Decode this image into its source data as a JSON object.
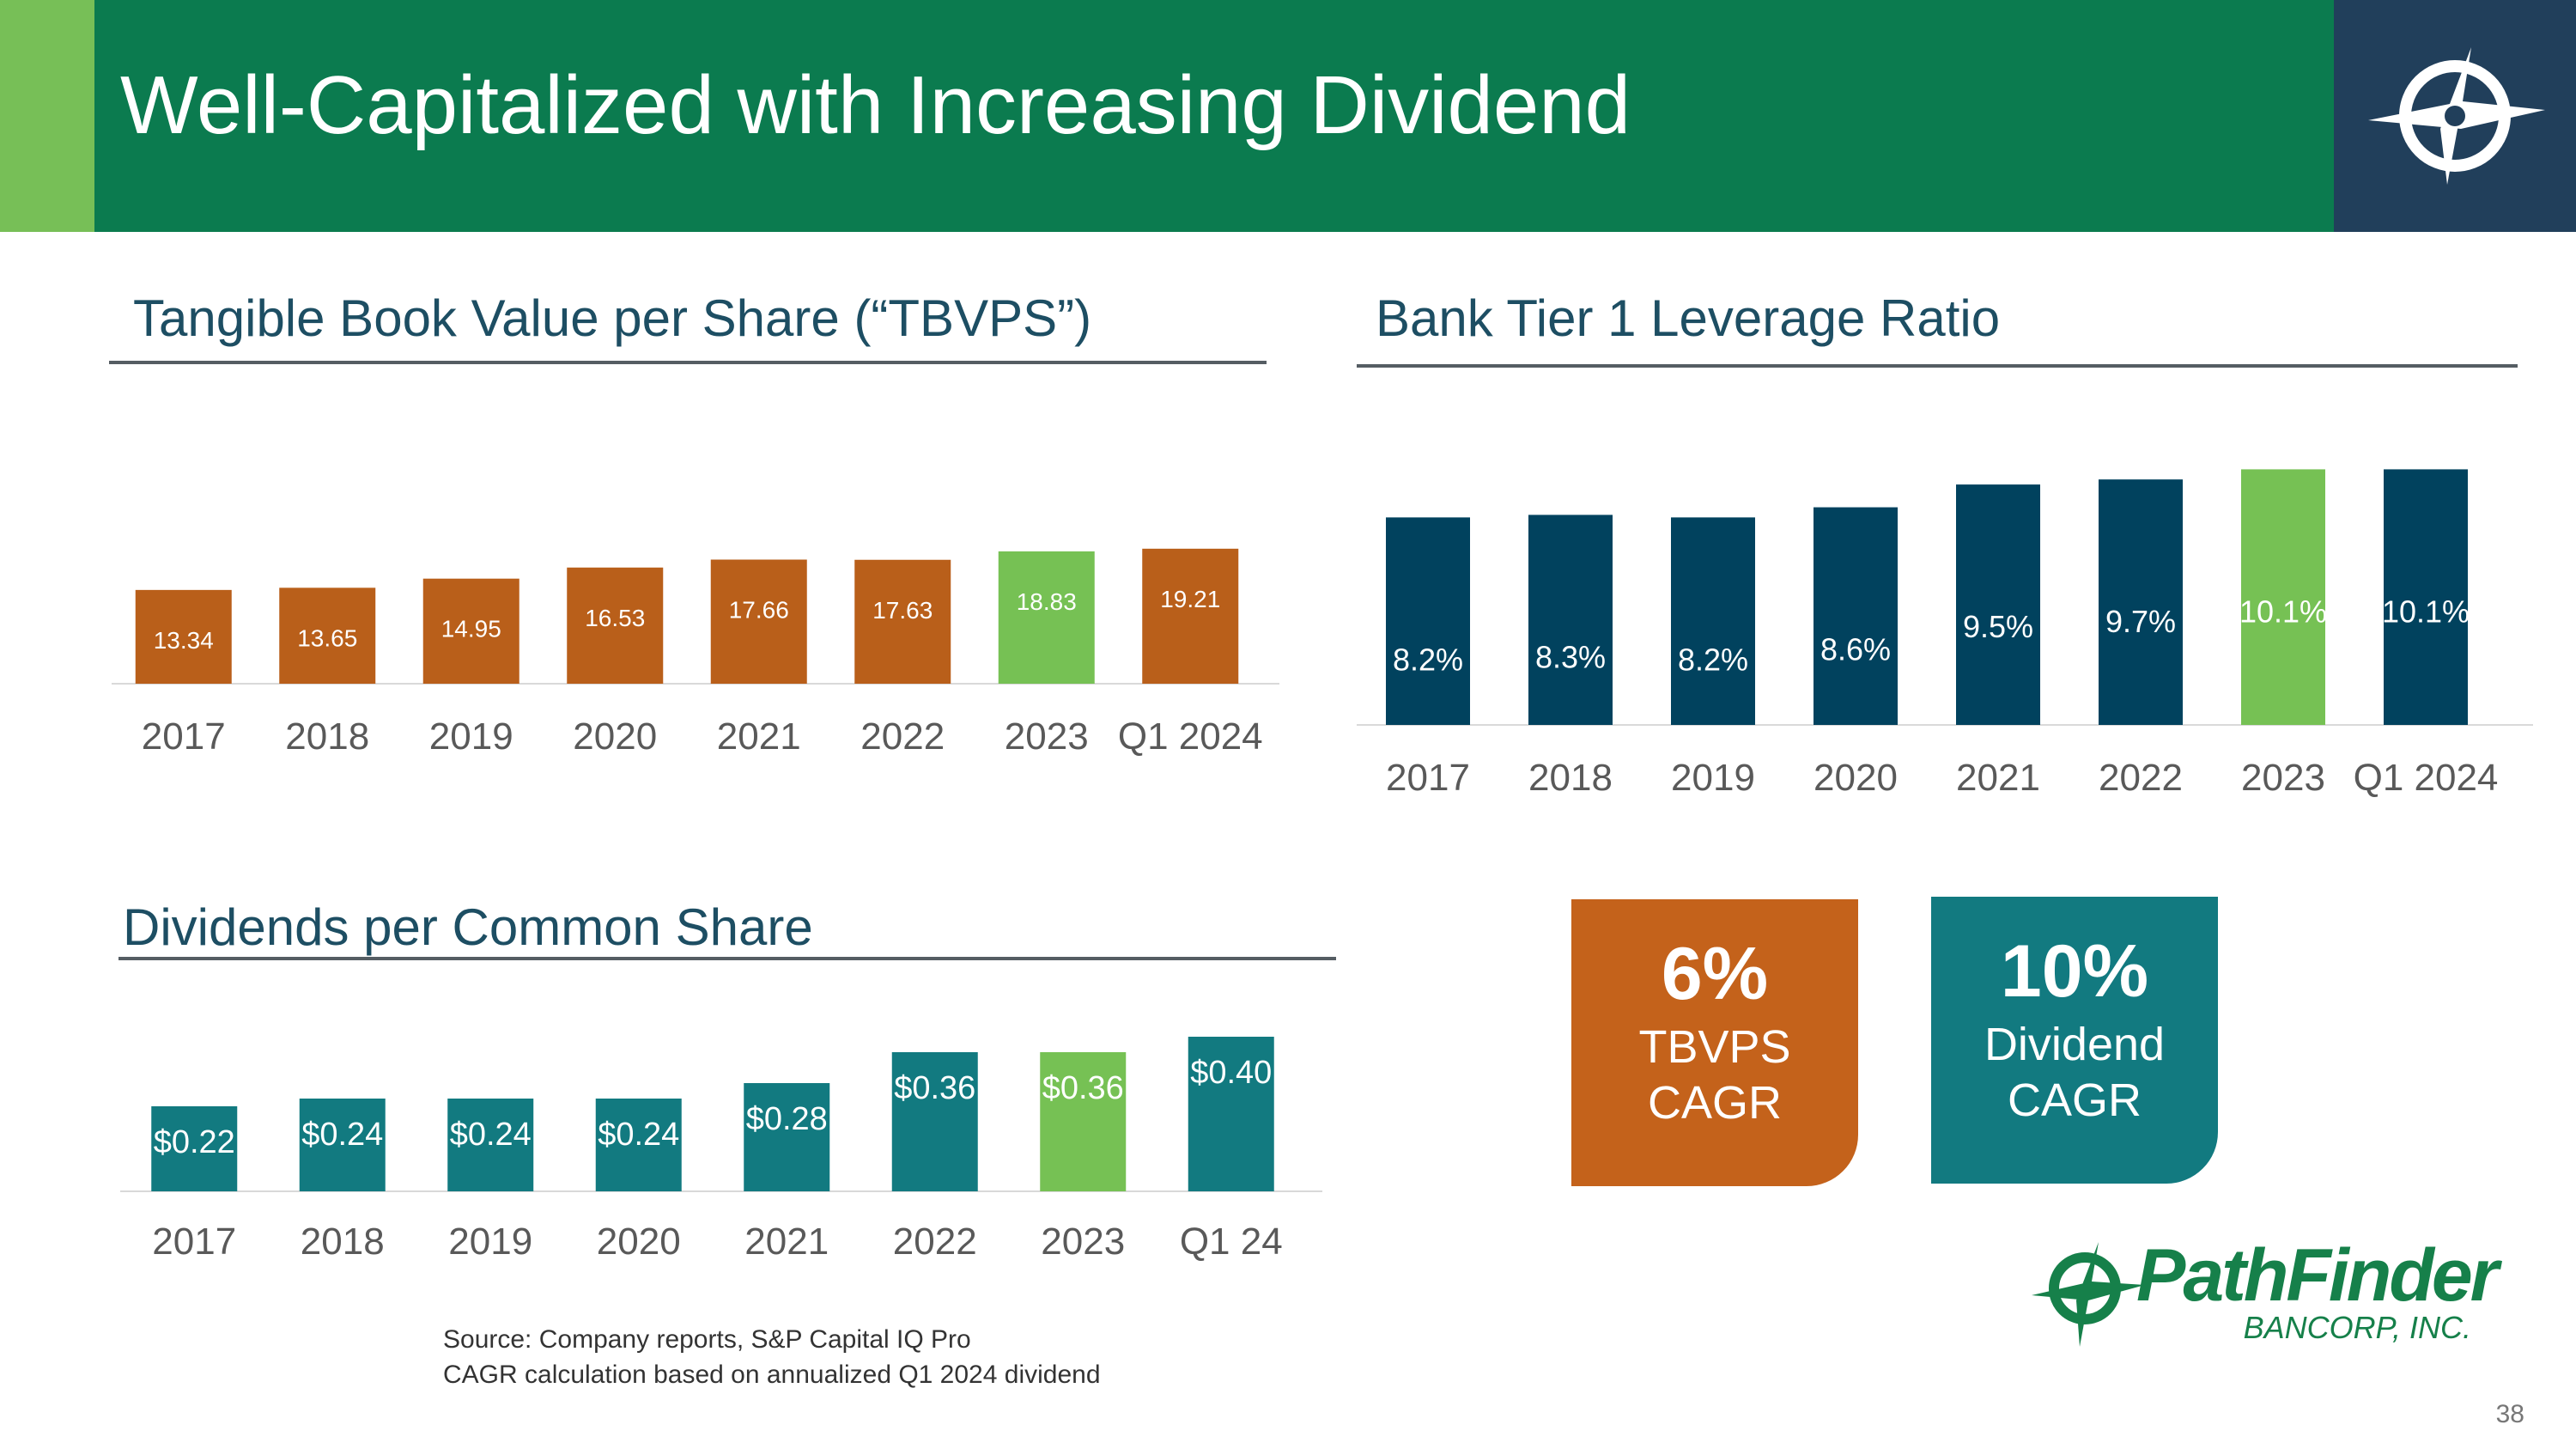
{
  "slide": {
    "title": "Well-Capitalized with Increasing Dividend",
    "page_number": "38"
  },
  "colors": {
    "banner_green": "#0b7b4f",
    "accent_green": "#77bf57",
    "logo_navy": "#213f5b",
    "tbvps_orange": "#b95f1a",
    "leverage_navy": "#01425e",
    "dividend_teal": "#127a80",
    "highlight_green": "#76c154"
  },
  "sections": {
    "tbvps_title": "Tangible Book Value per Share (“TBVPS”)",
    "leverage_title": "Bank Tier 1 Leverage Ratio",
    "dividends_title": "Dividends per Common Share"
  },
  "cagr": {
    "tbvps": {
      "value": "6%",
      "line1": "TBVPS",
      "line2": "CAGR"
    },
    "dividend": {
      "value": "10%",
      "line1": "Dividend",
      "line2": "CAGR"
    }
  },
  "source": {
    "line1": "Source: Company reports, S&P Capital IQ Pro",
    "line2": "CAGR calculation based on annualized Q1 2024 dividend"
  },
  "brand": {
    "name": "PathFinder",
    "sub": "BANCORP, INC."
  },
  "chart_data": [
    {
      "id": "tbvps",
      "type": "bar",
      "title": "Tangible Book Value per Share (“TBVPS”)",
      "categories": [
        "2017",
        "2018",
        "2019",
        "2020",
        "2021",
        "2022",
        "2023",
        "Q1 2024"
      ],
      "values": [
        13.34,
        13.65,
        14.95,
        16.53,
        17.66,
        17.63,
        18.83,
        19.21
      ],
      "labels": [
        "13.34",
        "13.65",
        "14.95",
        "16.53",
        "17.66",
        "17.63",
        "18.83",
        "19.21"
      ],
      "highlight_index": 6,
      "ylim": [
        0,
        22
      ]
    },
    {
      "id": "leverage",
      "type": "bar",
      "title": "Bank Tier 1 Leverage Ratio",
      "categories": [
        "2017",
        "2018",
        "2019",
        "2020",
        "2021",
        "2022",
        "2023",
        "Q1 2024"
      ],
      "values": [
        8.2,
        8.3,
        8.2,
        8.6,
        9.5,
        9.7,
        10.1,
        10.1
      ],
      "labels": [
        "8.2%",
        "8.3%",
        "8.2%",
        "8.6%",
        "9.5%",
        "9.7%",
        "10.1%",
        "10.1%"
      ],
      "highlight_index": 6,
      "ylim": [
        0,
        11.2
      ]
    },
    {
      "id": "dividends",
      "type": "bar",
      "title": "Dividends per Common Share",
      "categories": [
        "2017",
        "2018",
        "2019",
        "2020",
        "2021",
        "2022",
        "2023",
        "Q1 24"
      ],
      "values": [
        0.22,
        0.24,
        0.24,
        0.24,
        0.28,
        0.36,
        0.36,
        0.4
      ],
      "labels": [
        "$0.22",
        "$0.24",
        "$0.24",
        "$0.24",
        "$0.28",
        "$0.36",
        "$0.36",
        "$0.40"
      ],
      "highlight_index": 6,
      "ylim": [
        0,
        0.4
      ]
    }
  ]
}
